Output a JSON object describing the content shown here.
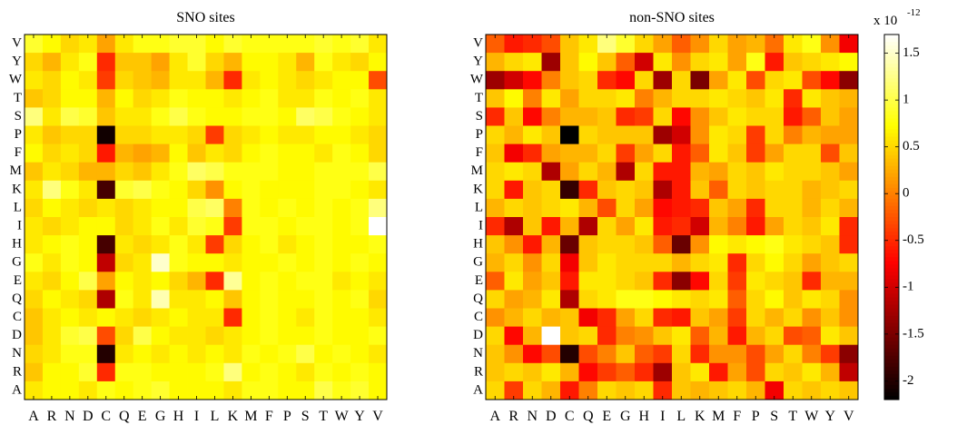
{
  "chart_data": [
    {
      "type": "heatmap",
      "title": "SNO sites",
      "x_categories": [
        "A",
        "R",
        "N",
        "D",
        "C",
        "Q",
        "E",
        "G",
        "H",
        "I",
        "L",
        "K",
        "M",
        "F",
        "P",
        "S",
        "T",
        "W",
        "Y",
        "V"
      ],
      "y_categories": [
        "V",
        "Y",
        "W",
        "T",
        "S",
        "P",
        "F",
        "M",
        "K",
        "L",
        "I",
        "H",
        "G",
        "E",
        "Q",
        "C",
        "D",
        "N",
        "R",
        "A"
      ],
      "x_tick_labels": [
        "A",
        "R",
        "N",
        "D",
        "C",
        "Q",
        "E",
        "G",
        "H",
        "I",
        "L",
        "K",
        "M",
        "F",
        "P",
        "S",
        "T",
        "W",
        "Y",
        "V"
      ],
      "values_scale": "x 1e-12",
      "values": [
        [
          0.9,
          0.7,
          0.5,
          0.6,
          0.2,
          0.6,
          0.8,
          0.8,
          0.9,
          0.9,
          0.7,
          0.9,
          0.8,
          0.8,
          0.8,
          0.8,
          0.9,
          0.8,
          0.9,
          0.6
        ],
        [
          0.5,
          0.3,
          0.6,
          0.8,
          -0.5,
          0.4,
          0.4,
          0.2,
          0.6,
          0.9,
          0.5,
          0.3,
          0.7,
          0.7,
          0.6,
          0.3,
          0.8,
          0.6,
          0.5,
          0.7
        ],
        [
          0.6,
          0.5,
          0.7,
          0.6,
          -0.4,
          0.5,
          0.4,
          0.3,
          0.6,
          0.6,
          0.3,
          -0.5,
          0.6,
          0.7,
          0.6,
          0.5,
          0.6,
          0.7,
          0.7,
          -0.3
        ],
        [
          0.4,
          0.5,
          0.7,
          0.7,
          0.3,
          0.7,
          0.5,
          0.6,
          0.8,
          0.7,
          0.7,
          0.6,
          0.7,
          0.8,
          0.6,
          0.6,
          0.8,
          0.7,
          0.8,
          0.6
        ],
        [
          1.2,
          0.6,
          1.0,
          0.9,
          0.4,
          0.6,
          0.6,
          0.8,
          1.0,
          0.8,
          0.7,
          0.7,
          0.8,
          0.8,
          0.7,
          1.1,
          1.0,
          0.8,
          0.7,
          0.6
        ],
        [
          0.6,
          0.4,
          0.5,
          0.5,
          -2.1,
          0.5,
          0.5,
          0.6,
          0.6,
          0.5,
          -0.4,
          0.5,
          0.6,
          0.7,
          0.6,
          0.6,
          0.7,
          0.7,
          0.6,
          0.5
        ],
        [
          0.7,
          0.5,
          0.6,
          0.5,
          -0.6,
          0.3,
          0.2,
          0.3,
          0.7,
          0.4,
          0.6,
          0.5,
          0.7,
          0.8,
          0.7,
          0.7,
          0.6,
          0.8,
          0.7,
          0.5
        ],
        [
          0.4,
          0.6,
          0.5,
          0.3,
          0.3,
          0.5,
          0.4,
          0.6,
          0.8,
          1.1,
          1.0,
          0.8,
          0.8,
          0.8,
          0.7,
          0.7,
          0.8,
          0.8,
          0.8,
          1.0
        ],
        [
          0.6,
          1.2,
          0.8,
          0.6,
          -1.8,
          0.9,
          1.0,
          0.8,
          0.7,
          0.5,
          0.1,
          0.7,
          0.8,
          0.7,
          0.7,
          0.7,
          0.8,
          0.8,
          0.7,
          0.6
        ],
        [
          0.5,
          0.7,
          0.6,
          0.5,
          0.6,
          0.5,
          0.6,
          0.7,
          0.7,
          1.0,
          1.1,
          0.0,
          0.8,
          0.7,
          0.8,
          0.7,
          0.8,
          0.7,
          0.8,
          1.2
        ],
        [
          0.6,
          0.5,
          0.6,
          0.7,
          0.7,
          0.5,
          0.6,
          0.8,
          0.6,
          0.9,
          0.8,
          -0.4,
          0.8,
          0.8,
          0.7,
          0.8,
          0.8,
          0.7,
          0.8,
          1.7
        ],
        [
          0.6,
          0.7,
          0.8,
          0.7,
          -1.8,
          0.6,
          0.5,
          0.6,
          0.8,
          0.6,
          -0.4,
          0.5,
          0.7,
          0.8,
          0.6,
          0.7,
          0.8,
          0.7,
          0.7,
          0.8
        ],
        [
          0.8,
          0.6,
          0.8,
          0.7,
          -1.1,
          0.5,
          0.6,
          1.5,
          0.8,
          0.7,
          0.7,
          0.6,
          0.7,
          0.7,
          0.8,
          0.7,
          0.8,
          0.7,
          0.8,
          0.7
        ],
        [
          0.6,
          0.5,
          0.7,
          1.0,
          0.2,
          0.7,
          0.6,
          0.7,
          0.5,
          0.3,
          -0.5,
          1.3,
          0.7,
          0.8,
          0.7,
          0.8,
          0.8,
          0.6,
          0.7,
          0.6
        ],
        [
          0.5,
          0.7,
          0.6,
          0.5,
          -1.2,
          0.8,
          0.6,
          1.4,
          0.6,
          0.6,
          0.7,
          0.4,
          0.7,
          0.8,
          0.7,
          0.7,
          0.8,
          0.7,
          0.8,
          0.5
        ],
        [
          0.4,
          0.6,
          0.7,
          0.6,
          0.7,
          0.6,
          0.5,
          0.6,
          0.7,
          0.6,
          0.6,
          -0.5,
          0.7,
          0.8,
          0.7,
          0.6,
          0.8,
          0.7,
          0.7,
          0.6
        ],
        [
          0.4,
          0.6,
          0.9,
          1.0,
          -0.3,
          0.5,
          1.0,
          0.7,
          0.6,
          0.6,
          0.5,
          0.6,
          0.7,
          0.8,
          0.7,
          0.7,
          0.8,
          0.7,
          0.7,
          0.8
        ],
        [
          0.5,
          0.6,
          0.8,
          0.8,
          -2.0,
          0.6,
          0.7,
          0.6,
          0.7,
          0.6,
          0.7,
          0.6,
          0.8,
          0.7,
          0.8,
          1.0,
          0.7,
          0.8,
          0.7,
          0.6
        ],
        [
          0.4,
          0.7,
          0.7,
          0.9,
          -0.5,
          0.8,
          0.8,
          0.7,
          0.7,
          0.7,
          0.8,
          1.2,
          0.7,
          0.8,
          0.7,
          0.6,
          0.8,
          0.7,
          0.8,
          0.7
        ],
        [
          0.6,
          0.7,
          0.7,
          0.6,
          0.8,
          0.7,
          0.8,
          0.9,
          0.7,
          0.7,
          0.7,
          0.6,
          0.8,
          0.8,
          0.7,
          0.7,
          1.0,
          0.8,
          0.9,
          0.7
        ]
      ],
      "clim": [
        -2.2,
        1.7
      ]
    },
    {
      "type": "heatmap",
      "title": "non-SNO sites",
      "x_categories": [
        "A",
        "R",
        "N",
        "D",
        "C",
        "Q",
        "E",
        "G",
        "H",
        "I",
        "L",
        "K",
        "M",
        "F",
        "P",
        "S",
        "T",
        "W",
        "Y",
        "V"
      ],
      "y_categories": [
        "V",
        "Y",
        "W",
        "T",
        "S",
        "P",
        "F",
        "M",
        "K",
        "L",
        "I",
        "H",
        "G",
        "E",
        "Q",
        "C",
        "D",
        "N",
        "R",
        "A"
      ],
      "x_tick_labels": [
        "A",
        "R",
        "N",
        "D",
        "C",
        "Q",
        "E",
        "G",
        "H",
        "I",
        "L",
        "K",
        "M",
        "F",
        "P",
        "S",
        "T",
        "W",
        "Y",
        "V"
      ],
      "values_scale": "x 1e-12",
      "values": [
        [
          -0.2,
          -0.6,
          -0.5,
          -0.3,
          0.4,
          0.6,
          1.2,
          0.9,
          0.5,
          0.2,
          -0.2,
          0.1,
          0.5,
          0.2,
          0.3,
          -0.1,
          0.6,
          0.8,
          0.1,
          -0.8
        ],
        [
          0.3,
          0.5,
          0.6,
          -1.3,
          0.4,
          0.7,
          0.4,
          -0.2,
          -1.0,
          0.6,
          0.1,
          0.5,
          0.6,
          0.2,
          0.8,
          -0.6,
          0.4,
          0.5,
          0.6,
          0.7
        ],
        [
          -1.3,
          -1.0,
          -0.7,
          0.0,
          0.4,
          0.5,
          -0.5,
          -0.7,
          0.5,
          -1.3,
          0.5,
          -1.5,
          0.2,
          0.6,
          -0.3,
          0.5,
          0.6,
          -0.3,
          -0.7,
          -1.4
        ],
        [
          0.4,
          0.7,
          0.0,
          0.6,
          0.2,
          0.5,
          0.5,
          0.6,
          0.0,
          0.3,
          0.5,
          0.5,
          0.6,
          0.5,
          0.4,
          0.6,
          -0.5,
          0.6,
          0.4,
          0.3
        ],
        [
          -0.5,
          0.4,
          -0.7,
          0.0,
          0.3,
          0.3,
          0.4,
          -0.5,
          -0.4,
          0.5,
          -0.7,
          0.1,
          0.4,
          0.6,
          0.5,
          0.5,
          -0.6,
          -0.2,
          0.4,
          0.2
        ],
        [
          0.5,
          0.3,
          0.6,
          0.4,
          -2.2,
          0.5,
          0.4,
          0.4,
          0.4,
          -1.3,
          -1.0,
          0.1,
          0.6,
          0.5,
          -0.4,
          0.5,
          0.0,
          0.3,
          0.2,
          0.2
        ],
        [
          0.4,
          -0.8,
          -0.5,
          0.2,
          0.3,
          0.3,
          0.5,
          -0.4,
          0.2,
          0.5,
          -0.6,
          -0.2,
          0.6,
          0.4,
          -0.4,
          0.2,
          0.5,
          0.5,
          -0.3,
          0.4
        ],
        [
          0.5,
          0.6,
          0.5,
          -1.2,
          0.2,
          0.5,
          0.3,
          -1.2,
          0.5,
          -0.6,
          -0.6,
          0.3,
          0.2,
          0.5,
          0.4,
          0.6,
          0.5,
          0.5,
          0.4,
          0.2
        ],
        [
          0.5,
          -0.6,
          0.4,
          0.5,
          -1.9,
          -0.5,
          0.4,
          0.5,
          0.4,
          -1.2,
          -0.6,
          0.4,
          -0.2,
          0.5,
          0.4,
          0.5,
          0.5,
          0.3,
          0.4,
          0.5
        ],
        [
          0.3,
          0.5,
          0.4,
          0.5,
          0.6,
          0.3,
          -0.3,
          0.5,
          0.2,
          -0.7,
          -0.6,
          -0.5,
          0.4,
          0.2,
          -0.5,
          0.5,
          0.5,
          0.3,
          0.5,
          0.3
        ],
        [
          -0.5,
          -1.2,
          0.4,
          -0.6,
          0.3,
          -1.2,
          0.5,
          0.2,
          0.6,
          -0.6,
          -0.5,
          -1.0,
          0.3,
          0.0,
          -0.6,
          0.2,
          0.5,
          0.4,
          0.6,
          -0.5
        ],
        [
          0.4,
          0.1,
          -0.6,
          0.3,
          -1.6,
          0.4,
          0.5,
          0.5,
          0.4,
          -0.2,
          -1.6,
          0.1,
          0.7,
          0.6,
          0.7,
          0.8,
          0.6,
          0.5,
          0.4,
          -0.5
        ],
        [
          0.3,
          0.5,
          0.1,
          0.5,
          -0.8,
          0.4,
          0.6,
          0.5,
          0.5,
          0.5,
          0.3,
          0.5,
          0.6,
          -0.5,
          0.5,
          0.7,
          0.5,
          0.2,
          0.4,
          0.5
        ],
        [
          -0.2,
          0.6,
          0.2,
          0.4,
          -0.6,
          0.6,
          0.6,
          0.5,
          0.4,
          -0.5,
          -1.4,
          -0.7,
          0.5,
          -0.4,
          0.6,
          0.5,
          0.4,
          -0.5,
          0.3,
          0.3
        ],
        [
          0.5,
          0.2,
          0.3,
          0.6,
          -1.2,
          0.5,
          0.6,
          0.8,
          0.8,
          0.7,
          0.6,
          0.5,
          0.6,
          -0.2,
          0.5,
          0.7,
          0.4,
          0.6,
          0.5,
          0.1
        ],
        [
          0.1,
          0.3,
          0.5,
          0.3,
          0.4,
          -0.8,
          -0.5,
          0.2,
          0.5,
          -0.5,
          -0.6,
          0.4,
          0.2,
          -0.4,
          0.5,
          0.3,
          0.5,
          0.1,
          0.4,
          0.1
        ],
        [
          0.5,
          -0.7,
          0.3,
          1.7,
          0.4,
          0.5,
          -0.5,
          0.0,
          0.1,
          0.4,
          0.6,
          -0.2,
          0.3,
          -0.6,
          0.3,
          0.5,
          -0.3,
          -0.2,
          0.6,
          0.4
        ],
        [
          0.4,
          0.1,
          -0.7,
          -0.3,
          -2.0,
          -0.3,
          0.0,
          0.4,
          -0.2,
          -0.4,
          0.5,
          -0.5,
          0.1,
          0.1,
          -0.3,
          0.2,
          0.5,
          0.0,
          -0.4,
          -1.4
        ],
        [
          0.4,
          0.5,
          0.4,
          0.6,
          0.3,
          -0.7,
          -0.4,
          -0.2,
          -0.5,
          -1.3,
          0.4,
          0.6,
          -0.6,
          0.2,
          -0.3,
          0.5,
          0.4,
          0.6,
          0.3,
          -1.1
        ],
        [
          0.5,
          -0.4,
          0.5,
          0.3,
          -0.6,
          0.0,
          0.5,
          0.4,
          0.5,
          -0.5,
          0.4,
          0.3,
          0.4,
          0.5,
          0.3,
          -0.8,
          0.5,
          0.4,
          0.5,
          0.4
        ]
      ],
      "clim": [
        -2.2,
        1.7
      ]
    }
  ],
  "colorbar": {
    "exponent_label": "x 10",
    "exponent": "-12",
    "ticks": [
      1.5,
      1,
      0.5,
      0,
      -0.5,
      -1,
      -1.5,
      -2
    ],
    "tick_labels": [
      "1.5",
      "1",
      "0.5",
      "0",
      "-0.5",
      "-1",
      "-1.5",
      "-2"
    ],
    "colormap": "hot"
  }
}
